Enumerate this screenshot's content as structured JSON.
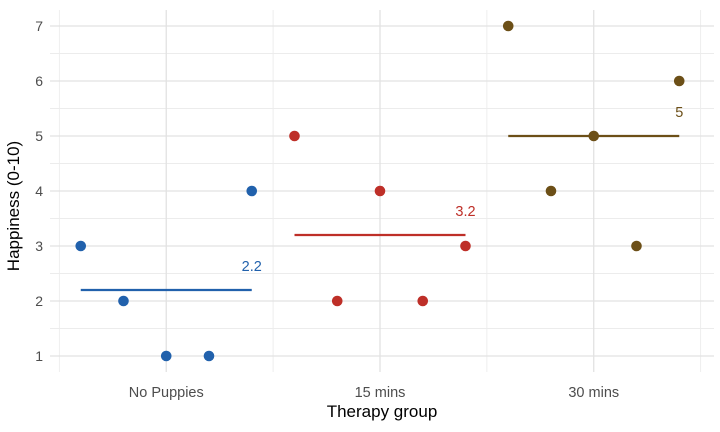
{
  "chart_data": {
    "type": "scatter",
    "title": "",
    "xlabel": "Therapy group",
    "ylabel": "Happiness (0-10)",
    "categories": [
      "No Puppies",
      "15 mins",
      "30 mins"
    ],
    "y_ticks": [
      "1",
      "2",
      "3",
      "4",
      "5",
      "6",
      "7"
    ],
    "ylim": [
      0.7,
      7.3
    ],
    "grid": "major and minor, light gray, no axis lines or ticks (minimal theme)",
    "legend": "none",
    "x_offsets": [
      -2,
      -1,
      0,
      1,
      2
    ],
    "series": [
      {
        "name": "No Puppies",
        "color": "#2161AC",
        "values": [
          3,
          2,
          1,
          1,
          4
        ],
        "mean": 2.2,
        "mean_label": "2.2"
      },
      {
        "name": "15 mins",
        "color": "#BE2F28",
        "values": [
          5,
          2,
          4,
          2,
          3
        ],
        "mean": 3.2,
        "mean_label": "3.2"
      },
      {
        "name": "30 mins",
        "color": "#6C4F17",
        "values": [
          7,
          4,
          5,
          3,
          6
        ],
        "mean": 5,
        "mean_label": "5"
      }
    ],
    "colors": {
      "background": "#FFFFFF",
      "grid_major": "#E2E2E2",
      "grid_minor": "#ECECEC",
      "axis_text": "#4D4D4D",
      "axis_title": "#000000"
    }
  }
}
